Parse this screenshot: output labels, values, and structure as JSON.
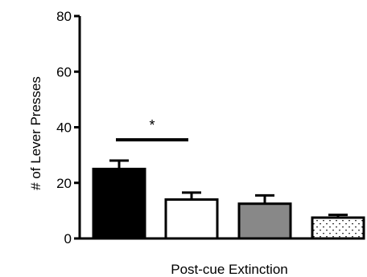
{
  "chart_data": {
    "type": "bar",
    "xlabel": "Post-cue Extinction",
    "ylabel": "# of Lever Presses",
    "ylim": [
      0,
      80
    ],
    "yticks": [
      0,
      20,
      40,
      60,
      80
    ],
    "values": [
      25,
      14,
      12.5,
      7.5
    ],
    "errors": [
      3,
      2.5,
      3,
      1
    ],
    "fills": [
      "#000000",
      "#ffffff",
      "#888888",
      "dotted"
    ],
    "significance": {
      "label": "*",
      "between": [
        0,
        1
      ],
      "y": 35.5
    },
    "grid": false,
    "legend": "none"
  }
}
